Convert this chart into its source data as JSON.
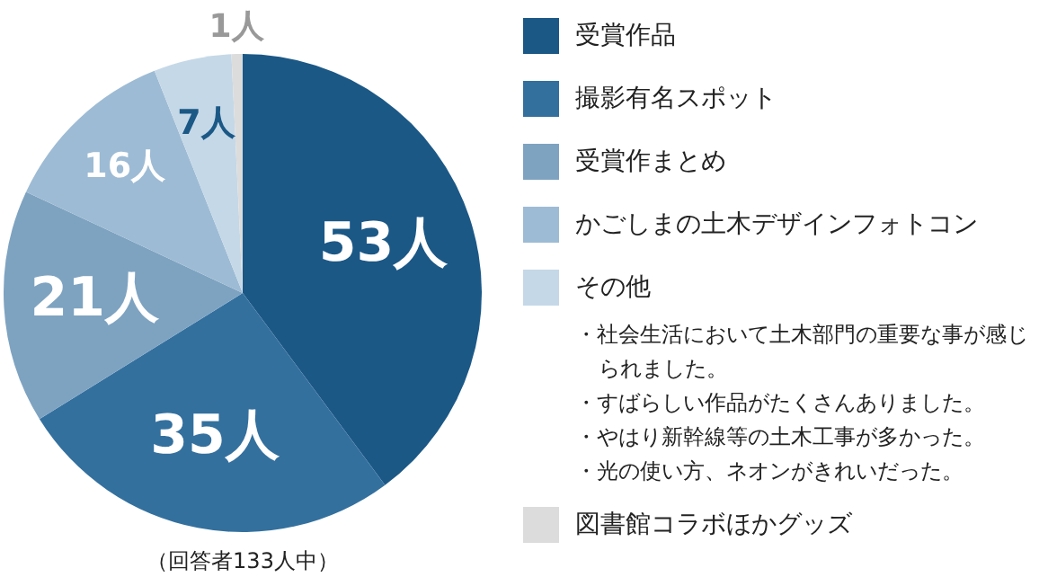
{
  "chart_data": {
    "type": "pie",
    "categories": [
      "受賞作品",
      "撮影有名スポット",
      "受賞作まとめ",
      "かごしまの土木デザインフォトコン",
      "その他",
      "図書館コラボほかグッズ"
    ],
    "values": [
      53,
      35,
      21,
      16,
      7,
      1
    ],
    "colors": [
      "#1b5886",
      "#33709e",
      "#7ea3c1",
      "#9dbbd4",
      "#c5d8e7",
      "#dcdcdc"
    ],
    "value_labels": [
      "53人",
      "35人",
      "21人",
      "16人",
      "7人",
      "1人"
    ],
    "legend": "right",
    "annotations": [
      "・社会生活において土木部門の重要な事が感じられました。",
      "・すばらしい作品がたくさんありました。",
      "・やはり新幹線等の土木工事が多かった。",
      "・光の使い方、ネオンがきれいだった。",
      "（回答者133人中）"
    ]
  }
}
